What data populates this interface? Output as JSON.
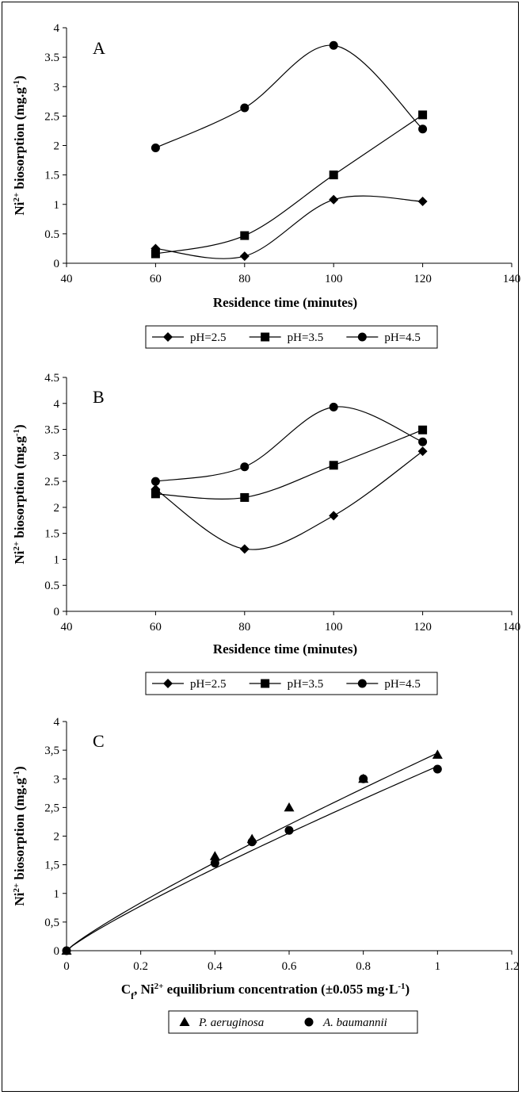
{
  "chart_data": [
    {
      "type": "line",
      "panel_label": "A",
      "xlabel": "Residence time (minutes)",
      "ylabel": "Ni2+ biosorption (mg.g-1)",
      "xlim": [
        40,
        140
      ],
      "ylim": [
        0,
        4
      ],
      "x_ticks": [
        "40",
        "60",
        "80",
        "100",
        "120",
        "140"
      ],
      "y_ticks": [
        "0",
        "0.5",
        "1",
        "1.5",
        "2",
        "2.5",
        "3",
        "3.5",
        "4"
      ],
      "x": [
        60,
        80,
        100,
        120
      ],
      "smooth": true,
      "legend_position": "bottom",
      "series": [
        {
          "name": "pH=2.5",
          "marker": "diamond",
          "values": [
            0.25,
            0.12,
            1.08,
            1.05
          ]
        },
        {
          "name": "pH=3.5",
          "marker": "square",
          "values": [
            0.16,
            0.47,
            1.5,
            2.52
          ]
        },
        {
          "name": "pH=4.5",
          "marker": "circle",
          "values": [
            1.96,
            2.64,
            3.7,
            2.28
          ]
        }
      ]
    },
    {
      "type": "line",
      "panel_label": "B",
      "xlabel": "Residence time (minutes)",
      "ylabel": "Ni2+ biosorption (mg.g-1)",
      "xlim": [
        40,
        140
      ],
      "ylim": [
        0,
        4.5
      ],
      "x_ticks": [
        "40",
        "60",
        "80",
        "100",
        "120",
        "140"
      ],
      "y_ticks": [
        "0",
        "0.5",
        "1",
        "1.5",
        "2",
        "2.5",
        "3",
        "3.5",
        "4",
        "4.5"
      ],
      "x": [
        60,
        80,
        100,
        120
      ],
      "smooth": true,
      "legend_position": "bottom",
      "series": [
        {
          "name": "pH=2.5",
          "marker": "diamond",
          "values": [
            2.35,
            1.2,
            1.84,
            3.08
          ]
        },
        {
          "name": "pH=3.5",
          "marker": "square",
          "values": [
            2.26,
            2.19,
            2.81,
            3.49
          ]
        },
        {
          "name": "pH=4.5",
          "marker": "circle",
          "values": [
            2.5,
            2.78,
            3.93,
            3.26
          ]
        }
      ]
    },
    {
      "type": "scatter",
      "panel_label": "C",
      "xlabel": "Cf, Ni2+ equilibrium concentration (±0.055 mg·L-1)",
      "ylabel": "Ni2+ biosorption (mg.g-1)",
      "xlim": [
        0,
        1.2
      ],
      "ylim": [
        0,
        4
      ],
      "x_ticks": [
        "0",
        "0.2",
        "0.4",
        "0.6",
        "0.8",
        "1",
        "1.2"
      ],
      "y_ticks": [
        "0",
        "0,5",
        "1",
        "1,5",
        "2",
        "2,5",
        "3",
        "3,5",
        "4"
      ],
      "legend_position": "bottom",
      "series": [
        {
          "name": "P. aeruginosa",
          "marker": "triangle",
          "x": [
            0,
            0.4,
            0.5,
            0.6,
            0.8,
            1.0
          ],
          "values": [
            0,
            1.65,
            1.95,
            2.5,
            3.0,
            3.42
          ],
          "fit": {
            "kind": "power",
            "a": 3.45,
            "b": 0.88
          }
        },
        {
          "name": "A. baumannii",
          "marker": "circle",
          "x": [
            0,
            0.4,
            0.5,
            0.6,
            0.8,
            1.0
          ],
          "values": [
            0,
            1.53,
            1.9,
            2.1,
            3.0,
            3.17
          ],
          "fit": {
            "kind": "power",
            "a": 3.22,
            "b": 0.88
          }
        }
      ]
    }
  ]
}
